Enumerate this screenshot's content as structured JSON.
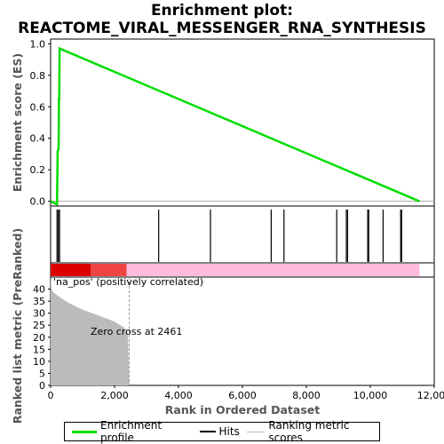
{
  "title_line1": "Enrichment plot:",
  "title_line2": "REACTOME_VIRAL_MESSENGER_RNA_SYNTHESIS",
  "colors": {
    "es_line": "#00dd00",
    "hits": "#000000",
    "metric_fill": "#bbbbbb",
    "pos_dark": "#dd0000",
    "pos_mid": "#ee4444",
    "pos_light": "#ffbbdd"
  },
  "chart_data": [
    {
      "type": "line",
      "name": "enrichment_profile",
      "ylabel": "Enrichment score (ES)",
      "yticks": [
        "0.0",
        "0.2",
        "0.4",
        "0.6",
        "0.8",
        "1.0"
      ],
      "ylim": [
        -0.03,
        1.03
      ],
      "xlim": [
        0,
        12000
      ],
      "points": [
        [
          0,
          0
        ],
        [
          200,
          -0.02
        ],
        [
          220,
          0.32
        ],
        [
          250,
          0.33
        ],
        [
          260,
          0.65
        ],
        [
          270,
          0.65
        ],
        [
          280,
          0.97
        ],
        [
          11540,
          0
        ]
      ]
    },
    {
      "type": "rug",
      "name": "hits",
      "hit_ranks": [
        200,
        240,
        280,
        3380,
        5000,
        6900,
        7300,
        8950,
        9250,
        9290,
        9920,
        9950,
        10400,
        10950,
        10980
      ]
    },
    {
      "type": "area",
      "name": "ranked_list_metric",
      "ylabel": "Ranked list metric (PreRanked)",
      "xlabel": "Rank in Ordered Dataset",
      "yticks": [
        "0",
        "5",
        "10",
        "15",
        "20",
        "25",
        "30",
        "35",
        "40"
      ],
      "xticks": [
        "0",
        "2,000",
        "4,000",
        "6,000",
        "8,000",
        "10,000",
        "12,000"
      ],
      "ylim": [
        0,
        45
      ],
      "xlim": [
        0,
        12000
      ],
      "points": [
        [
          0,
          45
        ],
        [
          30,
          40
        ],
        [
          100,
          38.5
        ],
        [
          300,
          36.5
        ],
        [
          600,
          34
        ],
        [
          1000,
          31.5
        ],
        [
          1500,
          29
        ],
        [
          2000,
          26.5
        ],
        [
          2300,
          24
        ],
        [
          2420,
          21
        ],
        [
          2461,
          0
        ]
      ],
      "annotations": {
        "pos_label": "'na_pos' (positively correlated)",
        "zero_cross": "Zero cross at 2461"
      }
    }
  ],
  "legend": {
    "items": [
      "Enrichment profile",
      "Hits",
      "Ranking metric scores"
    ]
  }
}
